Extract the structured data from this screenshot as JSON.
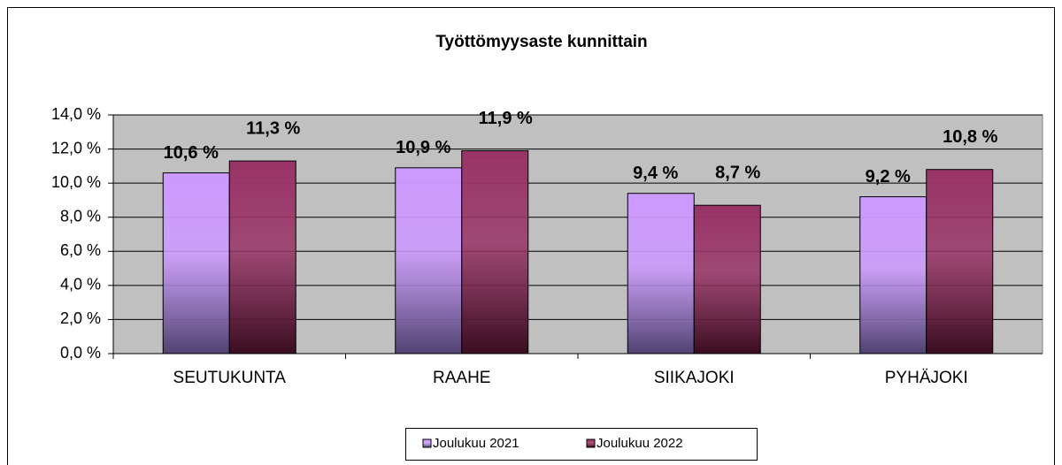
{
  "chart_data": {
    "type": "bar",
    "title": "Työttömyysaste kunnittain",
    "categories": [
      "SEUTUKUNTA",
      "RAAHE",
      "SIIKAJOKI",
      "PYHÄJOKI"
    ],
    "series": [
      {
        "name": "Joulukuu 2021",
        "color": "#cc99ff",
        "values": [
          10.6,
          10.9,
          9.4,
          9.2
        ],
        "value_labels": [
          "10,6 %",
          "10,9 %",
          "9,4 %",
          "9,2 %"
        ]
      },
      {
        "name": "Joulukuu 2022",
        "color": "#993366",
        "values": [
          11.3,
          11.9,
          8.7,
          10.8
        ],
        "value_labels": [
          "11,3 %",
          "11,9 %",
          "8,7 %",
          "10,8 %"
        ]
      }
    ],
    "ylim": [
      0,
      14
    ],
    "yticks": [
      {
        "value": 0,
        "label": "0,0 %"
      },
      {
        "value": 2,
        "label": "2,0 %"
      },
      {
        "value": 4,
        "label": "4,0 %"
      },
      {
        "value": 6,
        "label": "6,0 %"
      },
      {
        "value": 8,
        "label": "8,0 %"
      },
      {
        "value": 10,
        "label": "10,0 %"
      },
      {
        "value": 12,
        "label": "12,0 %"
      },
      {
        "value": 14,
        "label": "14,0 %"
      }
    ],
    "grid": true,
    "legend": "bottom"
  }
}
